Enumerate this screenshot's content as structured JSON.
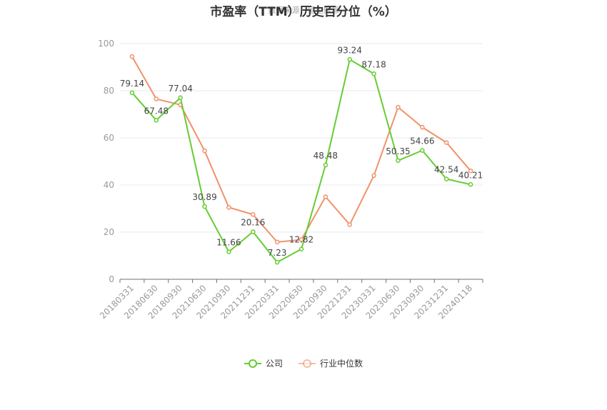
{
  "chart_data": {
    "type": "line",
    "title": "市盈率（TTM）历史百分位（%）",
    "watermark": "数据来源：恒生聚源",
    "categories": [
      "20180331",
      "20180630",
      "20180930",
      "20210630",
      "20210930",
      "20211231",
      "20220331",
      "20220630",
      "20220930",
      "20221231",
      "20230331",
      "20230630",
      "20230930",
      "20231231",
      "20240118"
    ],
    "ylim": [
      0,
      100
    ],
    "yticks": [
      0,
      20,
      40,
      60,
      80,
      100
    ],
    "grid": true,
    "legend_position": "bottom",
    "series": [
      {
        "name": "公司",
        "color": "#66cc33",
        "show_labels": true,
        "values": [
          79.14,
          67.48,
          77.04,
          30.89,
          11.66,
          20.16,
          7.23,
          12.82,
          48.48,
          93.24,
          87.18,
          50.35,
          54.66,
          42.54,
          40.21
        ],
        "labels": [
          "79.14",
          "67.48",
          "77.04",
          "30.89",
          "11.66",
          "20.16",
          "7.23",
          "12.82",
          "48.48",
          "93.24",
          "87.18",
          "50.35",
          "54.66",
          "42.54",
          "40.21"
        ]
      },
      {
        "name": "行业中位数",
        "color": "#f0926a",
        "show_labels": false,
        "values": [
          94.5,
          76.5,
          74.0,
          54.5,
          30.5,
          27.5,
          15.8,
          16.8,
          35.0,
          23.2,
          44.0,
          73.0,
          64.5,
          58.0,
          46.0
        ]
      }
    ]
  }
}
